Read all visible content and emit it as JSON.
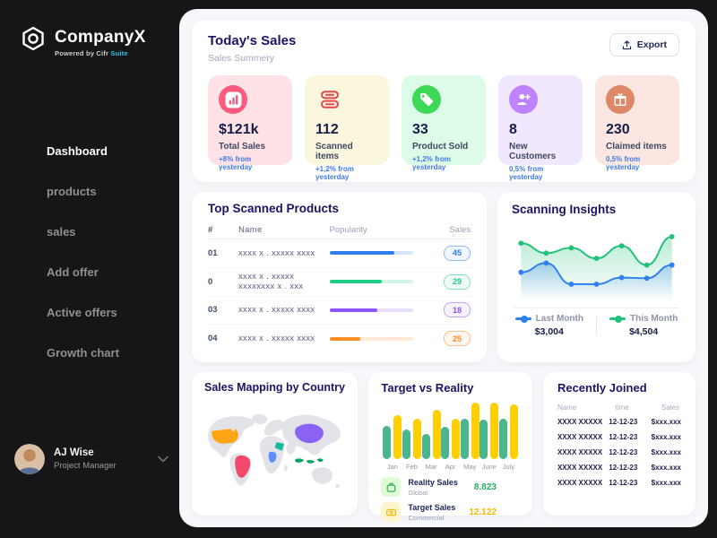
{
  "app": {
    "background": "#161618",
    "accent_blue": "#4079ED",
    "heading_color": "#1B1464"
  },
  "sidebar": {
    "brand": {
      "name": "CompanyX",
      "tagline": "Powered by Cifr",
      "tagline_brand": "Suite",
      "brand_accent": "#29C5E6"
    },
    "items": [
      {
        "label": "Dashboard",
        "active": true
      },
      {
        "label": "products",
        "active": false
      },
      {
        "label": "sales",
        "active": false
      },
      {
        "label": "Add offer",
        "active": false
      },
      {
        "label": "Active offers",
        "active": false
      },
      {
        "label": "Growth chart",
        "active": false
      }
    ],
    "user": {
      "name": "AJ Wise",
      "role": "Project Manager"
    }
  },
  "today": {
    "title": "Today's Sales",
    "subtitle": "Sales Summery",
    "export_label": "Export",
    "cards": [
      {
        "value": "$121k",
        "label": "Total Sales",
        "delta": "+8% from yesterday",
        "bg": "#FFE2E6",
        "icon_bg": "#FA5A7D",
        "icon": "bar-chart",
        "plain": false
      },
      {
        "value": "112",
        "label": "Scanned items",
        "delta": "+1,2% from yesterday",
        "bg": "#FBF7DE",
        "icon_bg": "#E8464B",
        "icon": "scanner",
        "plain": true
      },
      {
        "value": "33",
        "label": "Product Sold",
        "delta": "+1,2% from yesterday",
        "bg": "#DCFCE7",
        "icon_bg": "#3CD856",
        "icon": "price-tag",
        "plain": false
      },
      {
        "value": "8",
        "label": "New Customers",
        "delta": "0,5% from yesterday",
        "bg": "#F1E8FF",
        "icon_bg": "#BF83FF",
        "icon": "user-plus",
        "plain": false
      },
      {
        "value": "230",
        "label": "Claimed items",
        "delta": "0,5% from yesterday",
        "bg": "#FCE6E1",
        "icon_bg": "#DE8868",
        "icon": "gift",
        "plain": false
      }
    ]
  },
  "top_products": {
    "title": "Top Scanned Products",
    "headers": {
      "num": "#",
      "name": "Name",
      "popularity": "Popularity",
      "sales": "Sales"
    },
    "rows": [
      {
        "num": "01",
        "name": "xxxx x . xxxxx xxxx",
        "popularity": 78,
        "sales": "45",
        "color": "#2F80ED"
      },
      {
        "num": "0",
        "name": "xxxx x . xxxxx xxxxxxxx x . xxx",
        "popularity": 63,
        "sales": "29",
        "color": "#1ECB87"
      },
      {
        "num": "03",
        "name": "xxxx x . xxxxx xxxx",
        "popularity": 57,
        "sales": "18",
        "color": "#8C54FF"
      },
      {
        "num": "04",
        "name": "xxxx x . xxxxx xxxx",
        "popularity": 37,
        "sales": "25",
        "color": "#FF8E26"
      }
    ]
  },
  "insights": {
    "title": "Scanning Insights",
    "chart_data": {
      "type": "line",
      "x": [
        1,
        2,
        3,
        4,
        5,
        6,
        7
      ],
      "series": [
        {
          "name": "This Month",
          "color": "#21C179",
          "values": [
            83,
            68,
            76,
            60,
            79,
            50,
            93
          ],
          "total": "$4,504"
        },
        {
          "name": "Last Month",
          "color": "#2F80ED",
          "values": [
            39,
            53,
            21,
            21,
            31,
            30,
            50
          ],
          "total": "$3,004"
        }
      ],
      "ylim": [
        0,
        100
      ],
      "grid": false,
      "legend_position": "bottom",
      "legend_order": [
        "Last Month",
        "This Month"
      ]
    }
  },
  "map": {
    "title": "Sales Mapping by Country",
    "countries": [
      {
        "name": "United States",
        "color": "#FFA412"
      },
      {
        "name": "Brazil",
        "color": "#F2486B"
      },
      {
        "name": "DR Congo",
        "color": "#5B8FF9"
      },
      {
        "name": "Saudi Arabia",
        "color": "#16B99B"
      },
      {
        "name": "China",
        "color": "#8A63F4"
      },
      {
        "name": "Indonesia",
        "color": "#069E63"
      }
    ]
  },
  "target": {
    "title": "Target vs Reality",
    "chart_data": {
      "type": "bar",
      "categories": [
        "Jan",
        "Feb",
        "Mar",
        "Apr",
        "May",
        "June",
        "July"
      ],
      "series": [
        {
          "name": "Reality Sales",
          "subtitle": "Global",
          "total": "8.823",
          "color": "#4AB58E",
          "total_color": "#27AE60",
          "values": [
            58,
            52,
            43,
            57,
            70,
            69,
            70
          ]
        },
        {
          "name": "Target Sales",
          "subtitle": "Commercial",
          "total": "12.122",
          "color": "#FFCF00",
          "total_color": "#F5B800",
          "values": [
            76,
            70,
            86,
            70,
            98,
            98,
            96
          ]
        }
      ],
      "ylim": [
        0,
        100
      ],
      "grid": false
    }
  },
  "recent": {
    "title": "Recently Joined",
    "headers": {
      "name": "Name",
      "time": "time",
      "sales": "Sales"
    },
    "rows": [
      {
        "name": "XXXX XXXXX",
        "time": "12-12-23",
        "sales": "$xxx.xxx"
      },
      {
        "name": "XXXX XXXXX",
        "time": "12-12-23",
        "sales": "$xxx.xxx"
      },
      {
        "name": "XXXX XXXXX",
        "time": "12-12-23",
        "sales": "$xxx.xxx"
      },
      {
        "name": "XXXX XXXXX",
        "time": "12-12-23",
        "sales": "$xxx.xxx"
      },
      {
        "name": "XXXX XXXXX",
        "time": "12-12-23",
        "sales": "$xxx.xxx"
      }
    ]
  }
}
